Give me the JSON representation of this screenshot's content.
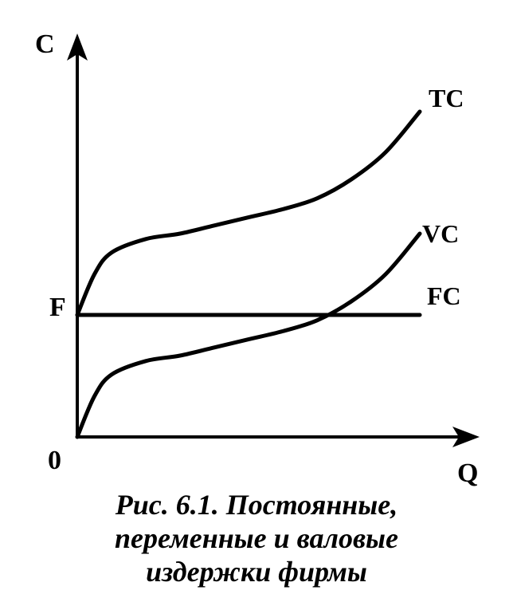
{
  "chart_data": {
    "type": "line",
    "xlabel": "Q",
    "ylabel": "C",
    "origin_label": "0",
    "y_tick_labels": [
      "F"
    ],
    "fixed_cost_level": 0.45,
    "xlim": [
      0,
      1
    ],
    "ylim": [
      0,
      1.2
    ],
    "series": [
      {
        "name": "TC",
        "x": [
          0,
          0.05,
          0.1,
          0.2,
          0.3,
          0.4,
          0.5,
          0.6,
          0.7,
          0.8,
          0.9,
          1.0
        ],
        "y": [
          0.45,
          0.6,
          0.68,
          0.73,
          0.75,
          0.78,
          0.81,
          0.84,
          0.88,
          0.95,
          1.05,
          1.2
        ]
      },
      {
        "name": "VC",
        "x": [
          0,
          0.05,
          0.1,
          0.2,
          0.3,
          0.4,
          0.5,
          0.6,
          0.7,
          0.8,
          0.9,
          1.0
        ],
        "y": [
          0,
          0.15,
          0.23,
          0.28,
          0.3,
          0.33,
          0.36,
          0.39,
          0.43,
          0.5,
          0.6,
          0.75
        ]
      },
      {
        "name": "FC",
        "x": [
          0,
          1.0
        ],
        "y": [
          0.45,
          0.45
        ]
      }
    ]
  },
  "caption": {
    "line1": "Рис. 6.1. Постоянные,",
    "line2": "переменные и валовые",
    "line3": "издержки фирмы"
  }
}
